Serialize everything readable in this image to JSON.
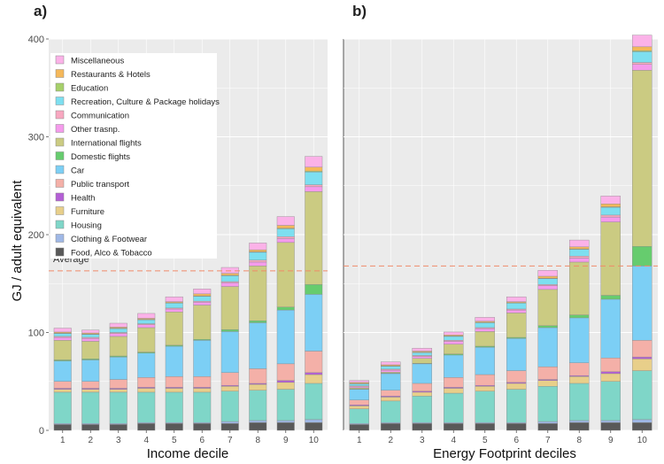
{
  "chart_data": [
    {
      "panel": "a)",
      "type": "bar",
      "stacked": true,
      "xlabel": "Income decile",
      "ylabel": "GJ / adult equivalent",
      "ylim": [
        0,
        400
      ],
      "yticks": [
        0,
        100,
        200,
        300,
        400
      ],
      "categories": [
        "1",
        "2",
        "3",
        "4",
        "5",
        "6",
        "7",
        "8",
        "9",
        "10"
      ],
      "average_label": "Average",
      "average_value": 163,
      "grid": true,
      "legend_position": "top-left",
      "series": [
        {
          "name": "Food, Alco & Tobacco",
          "color": "#595959",
          "values": [
            6,
            6,
            6,
            7,
            7,
            7,
            7,
            8,
            8,
            8
          ]
        },
        {
          "name": "Clothing & Footwear",
          "color": "#9fb8e6",
          "values": [
            1,
            1,
            1,
            1,
            1,
            1,
            2,
            2,
            2,
            3
          ]
        },
        {
          "name": "Housing",
          "color": "#7fd6c8",
          "values": [
            32,
            32,
            32,
            31,
            31,
            31,
            31,
            31,
            32,
            37
          ]
        },
        {
          "name": "Furniture",
          "color": "#e8cf8a",
          "values": [
            3,
            3,
            3,
            4,
            4,
            4,
            5,
            6,
            7,
            9
          ]
        },
        {
          "name": "Health",
          "color": "#b45fd6",
          "values": [
            1,
            1,
            1,
            1,
            1,
            1,
            1,
            1,
            2,
            2
          ]
        },
        {
          "name": "Public transport",
          "color": "#f4b0a8",
          "values": [
            7,
            7,
            9,
            10,
            11,
            11,
            13,
            15,
            17,
            22
          ]
        },
        {
          "name": "Car",
          "color": "#7ccff5",
          "values": [
            21,
            22,
            23,
            25,
            31,
            37,
            42,
            47,
            55,
            58
          ]
        },
        {
          "name": "Domestic flights",
          "color": "#66cc6e",
          "values": [
            1,
            1,
            1,
            1,
            1,
            1,
            2,
            2,
            3,
            10
          ]
        },
        {
          "name": "International flights",
          "color": "#cbcb82",
          "values": [
            20,
            18,
            20,
            25,
            34,
            35,
            44,
            56,
            66,
            95
          ]
        },
        {
          "name": "Other trasnp.",
          "color": "#f59bec",
          "values": [
            3,
            3,
            3,
            3,
            3,
            3,
            4,
            4,
            4,
            5
          ]
        },
        {
          "name": "Communication",
          "color": "#f8a7c0",
          "values": [
            1,
            1,
            1,
            1,
            1,
            1,
            1,
            2,
            2,
            2
          ]
        },
        {
          "name": "Recreation, Culture & Package holidays",
          "color": "#7ddff0",
          "values": [
            3,
            3,
            4,
            4,
            5,
            5,
            6,
            8,
            8,
            13
          ]
        },
        {
          "name": "Education",
          "color": "#a6d06a",
          "values": [
            0.5,
            0.5,
            0.5,
            0.5,
            0.5,
            0.5,
            0.5,
            0.5,
            0.5,
            1
          ]
        },
        {
          "name": "Restaurants & Hotels",
          "color": "#f5b85a",
          "values": [
            1,
            1,
            1,
            1,
            1,
            2,
            2,
            2,
            3,
            4
          ]
        },
        {
          "name": "Miscellaneous",
          "color": "#fbb2e8",
          "values": [
            4,
            3,
            4,
            5,
            5,
            5,
            6,
            7,
            9,
            11
          ]
        }
      ]
    },
    {
      "panel": "b)",
      "type": "bar",
      "stacked": true,
      "xlabel": "Energy Footprint deciles",
      "ylabel": "",
      "ylim": [
        0,
        400
      ],
      "categories": [
        "1",
        "2",
        "3",
        "4",
        "5",
        "6",
        "7",
        "8",
        "9",
        "10"
      ],
      "average_value": 168,
      "grid": true,
      "series": [
        {
          "name": "Food, Alco & Tobacco",
          "color": "#595959",
          "values": [
            6,
            7,
            7,
            7,
            7,
            7,
            7,
            8,
            8,
            8
          ]
        },
        {
          "name": "Clothing & Footwear",
          "color": "#9fb8e6",
          "values": [
            1,
            1,
            1,
            1,
            1,
            1,
            2,
            2,
            2,
            3
          ]
        },
        {
          "name": "Housing",
          "color": "#7fd6c8",
          "values": [
            15,
            22,
            27,
            30,
            32,
            34,
            36,
            38,
            40,
            50
          ]
        },
        {
          "name": "Furniture",
          "color": "#e8cf8a",
          "values": [
            3,
            4,
            4,
            5,
            5,
            6,
            6,
            7,
            8,
            12
          ]
        },
        {
          "name": "Health",
          "color": "#b45fd6",
          "values": [
            1,
            1,
            1,
            1,
            1,
            1,
            1,
            1,
            2,
            2
          ]
        },
        {
          "name": "Public transport",
          "color": "#f4b0a8",
          "values": [
            5,
            6,
            8,
            10,
            11,
            12,
            13,
            13,
            14,
            17
          ]
        },
        {
          "name": "Car",
          "color": "#7ccff5",
          "values": [
            11,
            17,
            20,
            23,
            28,
            33,
            40,
            46,
            60,
            76
          ]
        },
        {
          "name": "Domestic flights",
          "color": "#66cc6e",
          "values": [
            0.5,
            0.5,
            0.5,
            1,
            1,
            1,
            2,
            3,
            4,
            20
          ]
        },
        {
          "name": "International flights",
          "color": "#cbcb82",
          "values": [
            1,
            1,
            5,
            10,
            15,
            25,
            37,
            54,
            75,
            180
          ]
        },
        {
          "name": "Other trasnp.",
          "color": "#f59bec",
          "values": [
            1,
            2,
            2,
            3,
            3,
            3,
            4,
            4,
            5,
            6
          ]
        },
        {
          "name": "Communication",
          "color": "#f8a7c0",
          "values": [
            1,
            1,
            1,
            1,
            1,
            1,
            1,
            2,
            2,
            2
          ]
        },
        {
          "name": "Recreation, Culture & Package holidays",
          "color": "#7ddff0",
          "values": [
            2,
            3,
            3,
            4,
            5,
            6,
            6,
            7,
            8,
            11
          ]
        },
        {
          "name": "Education",
          "color": "#a6d06a",
          "values": [
            0.5,
            0.5,
            0.5,
            0.5,
            0.5,
            0.5,
            0.5,
            0.5,
            0.5,
            1
          ]
        },
        {
          "name": "Restaurants & Hotels",
          "color": "#f5b85a",
          "values": [
            1,
            1,
            1,
            1,
            1,
            1,
            2,
            2,
            3,
            4
          ]
        },
        {
          "name": "Miscellaneous",
          "color": "#fbb2e8",
          "values": [
            2,
            3,
            3,
            3,
            4,
            5,
            6,
            7,
            8,
            12
          ]
        }
      ]
    }
  ]
}
